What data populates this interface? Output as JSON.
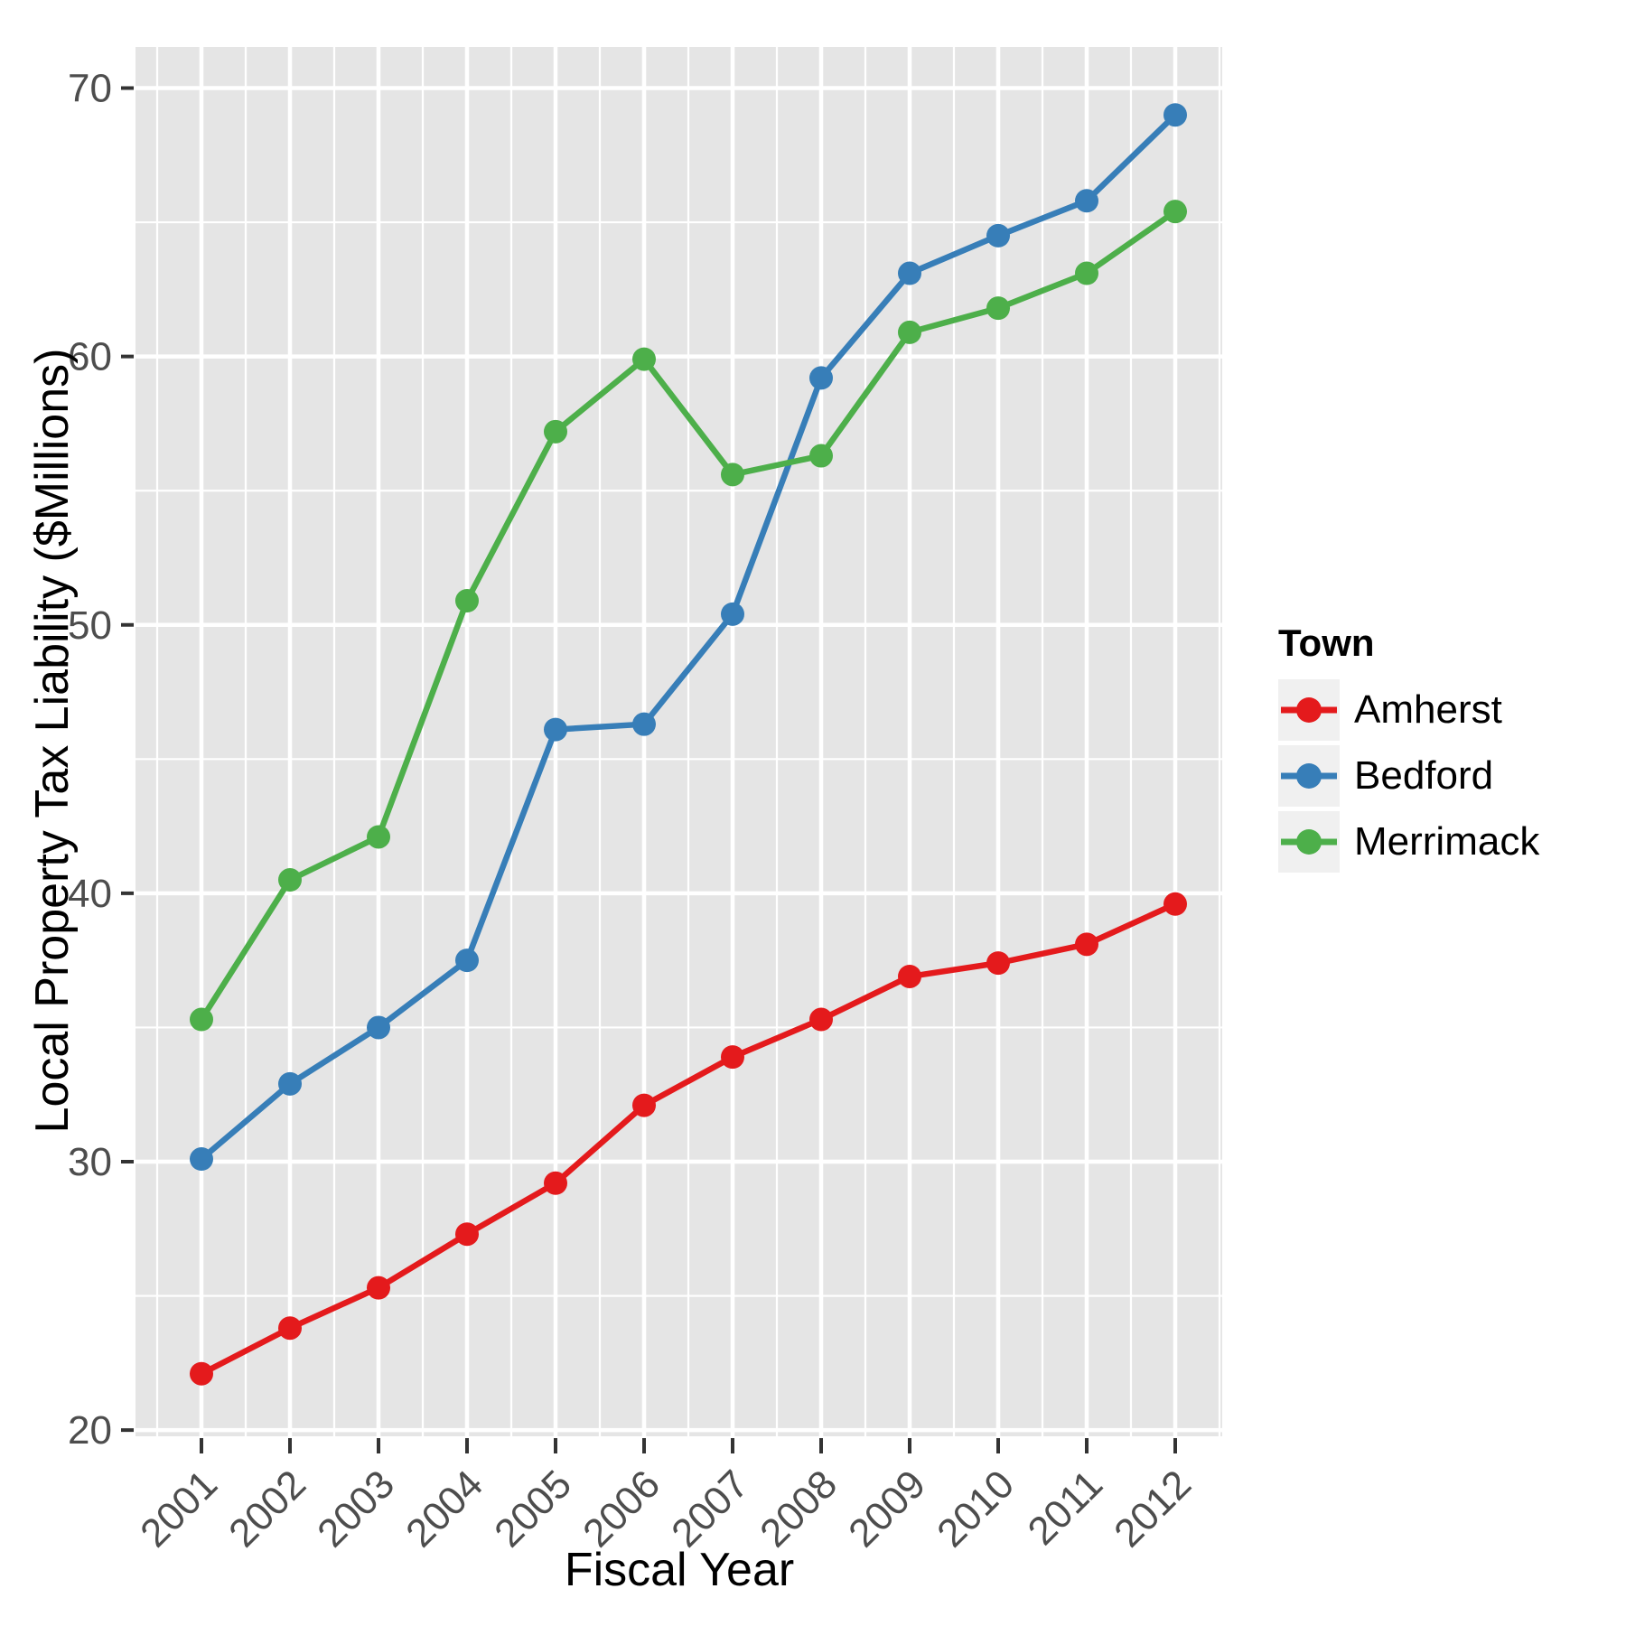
{
  "chart_data": {
    "type": "line",
    "title": "",
    "xlabel": "Fiscal Year",
    "ylabel": "Local Property Tax Liability ($Millions)",
    "x": [
      2001,
      2002,
      2003,
      2004,
      2005,
      2006,
      2007,
      2008,
      2009,
      2010,
      2011,
      2012
    ],
    "series": [
      {
        "name": "Amherst",
        "color": "#E41A1C",
        "values": [
          22.1,
          23.8,
          25.3,
          27.3,
          29.2,
          32.1,
          33.9,
          35.3,
          36.9,
          37.4,
          38.1,
          39.6
        ]
      },
      {
        "name": "Bedford",
        "color": "#377EB8",
        "values": [
          30.1,
          32.9,
          35.0,
          37.5,
          46.1,
          46.3,
          50.4,
          59.2,
          63.1,
          64.5,
          65.8,
          69.0
        ]
      },
      {
        "name": "Merrimack",
        "color": "#4DAF4A",
        "values": [
          35.3,
          40.5,
          42.1,
          50.9,
          57.2,
          59.9,
          55.6,
          56.3,
          60.9,
          61.8,
          63.1,
          65.4
        ]
      }
    ],
    "xticks": [
      2001,
      2002,
      2003,
      2004,
      2005,
      2006,
      2007,
      2008,
      2009,
      2010,
      2011,
      2012
    ],
    "yticks": [
      20,
      30,
      40,
      50,
      60,
      70
    ],
    "ylim": [
      19.8,
      71.5
    ],
    "xlim": [
      2000.26,
      2012.53
    ],
    "grid": "major+minor",
    "legend": {
      "title": "Town",
      "position": "right"
    },
    "style": {
      "panel_fill": "#E5E5E5",
      "grid_color": "#FFFFFF",
      "tick_color": "#333333",
      "tick_label_color": "#4D4D4D",
      "legend_key_fill": "#F0F0F0"
    }
  }
}
